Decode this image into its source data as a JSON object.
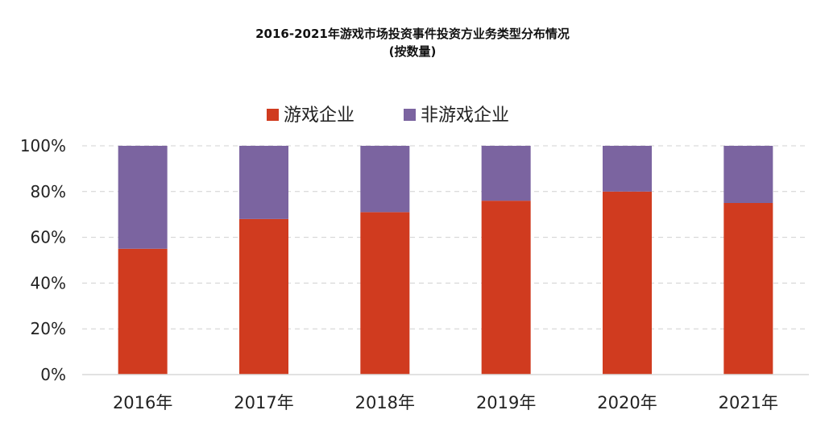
{
  "chart_data": {
    "type": "bar",
    "stacked": true,
    "title": "2016-2021年游戏市场投资事件投资方业务类型分布情况",
    "subtitle": "(按数量)",
    "categories": [
      "2016年",
      "2017年",
      "2018年",
      "2019年",
      "2020年",
      "2021年"
    ],
    "series": [
      {
        "name": "游戏企业",
        "color": "#d03b1f",
        "values": [
          55,
          68,
          71,
          76,
          80,
          75
        ]
      },
      {
        "name": "非游戏企业",
        "color": "#7b64a0",
        "values": [
          45,
          32,
          29,
          24,
          20,
          25
        ]
      }
    ],
    "ylim": [
      0,
      100
    ],
    "yticks": [
      "0%",
      "20%",
      "40%",
      "60%",
      "80%",
      "100%"
    ],
    "grid": true,
    "legend": "top-center"
  }
}
